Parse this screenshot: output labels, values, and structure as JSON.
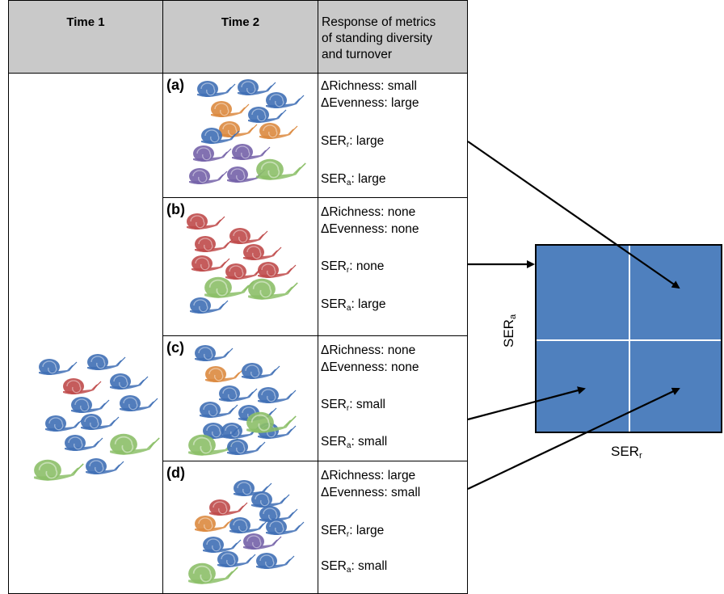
{
  "table": {
    "headers": {
      "time1": "Time 1",
      "time2": "Time 2",
      "response": [
        "Response of metrics",
        "of standing diversity",
        "and turnover"
      ]
    },
    "panels": [
      {
        "label": "(a)",
        "richness": "ΔRichness: small",
        "evenness": "ΔEvenness: large",
        "ser_r": ": large",
        "ser_a": ": large"
      },
      {
        "label": "(b)",
        "richness": "ΔRichness: none",
        "evenness": "ΔEvenness: none",
        "ser_r": ": none",
        "ser_a": ": large"
      },
      {
        "label": "(c)",
        "richness": "ΔRichness: none",
        "evenness": "ΔEvenness: none",
        "ser_r": ": small",
        "ser_a": ": small"
      },
      {
        "label": "(d)",
        "richness": "ΔRichness: large",
        "evenness": "ΔEvenness: small",
        "ser_r": ": large",
        "ser_a": ": small"
      }
    ],
    "ser_prefix": "SER",
    "ser_r_sub": "r",
    "ser_a_sub": "a"
  },
  "quadrant": {
    "x_label": "SER",
    "x_label_sub": "r",
    "y_label": "SER",
    "y_label_sub": "a",
    "color": "#4f80be"
  },
  "species_colors": {
    "blue": "#3f6fb5",
    "orange": "#dc8a3f",
    "purple": "#7462a8",
    "red": "#bf4a4a",
    "green": "#8cbf68"
  },
  "communities": {
    "time1": [
      "blue",
      "blue",
      "red",
      "blue",
      "blue",
      "blue",
      "blue",
      "blue",
      "blue",
      "green",
      "blue",
      "green"
    ],
    "a": [
      "blue",
      "blue",
      "blue",
      "orange",
      "blue",
      "orange",
      "orange",
      "blue",
      "purple",
      "purple",
      "purple",
      "purple",
      "green"
    ],
    "b": [
      "red",
      "red",
      "red",
      "red",
      "red",
      "red",
      "red",
      "green",
      "green",
      "blue"
    ],
    "c": [
      "blue",
      "orange",
      "blue",
      "blue",
      "blue",
      "blue",
      "blue",
      "blue",
      "blue",
      "blue",
      "green",
      "green",
      "blue"
    ],
    "d": [
      "blue",
      "blue",
      "red",
      "blue",
      "orange",
      "blue",
      "blue",
      "purple",
      "blue",
      "blue",
      "blue",
      "green"
    ]
  }
}
